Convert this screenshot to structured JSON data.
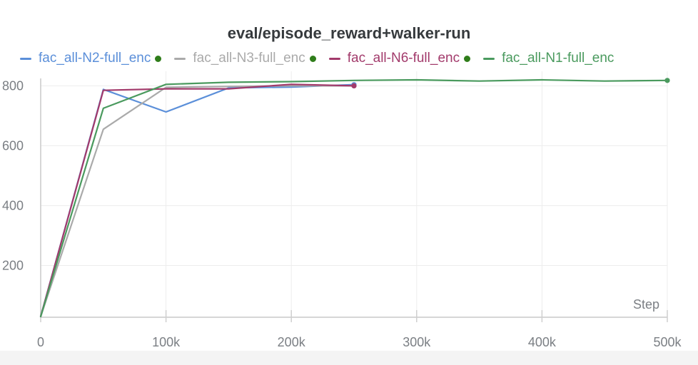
{
  "chart_data": {
    "type": "line",
    "title": "eval/episode_reward+walker-run",
    "xlabel": "Step",
    "ylabel": "",
    "xlim": [
      0,
      500000
    ],
    "ylim": [
      30,
      820
    ],
    "xticks": [
      0,
      100000,
      200000,
      300000,
      400000,
      500000
    ],
    "xtick_labels": [
      "0",
      "100k",
      "200k",
      "300k",
      "400k",
      "500k"
    ],
    "yticks": [
      200,
      400,
      600,
      800
    ],
    "ytick_labels": [
      "200",
      "400",
      "600",
      "800"
    ],
    "grid": true,
    "legend_position": "top",
    "series": [
      {
        "name": "fac_all-N2-full_enc",
        "color": "#5b8fd9",
        "marker_dot": true,
        "x": [
          0,
          50000,
          100000,
          150000,
          200000,
          250000
        ],
        "y": [
          30,
          788,
          713,
          793,
          796,
          804
        ]
      },
      {
        "name": "fac_all-N3-full_enc",
        "color": "#aaaaaa",
        "marker_dot": true,
        "x": [
          0,
          50000,
          100000,
          150000,
          200000,
          250000
        ],
        "y": [
          30,
          655,
          795,
          798,
          800,
          800
        ]
      },
      {
        "name": "fac_all-N6-full_enc",
        "color": "#a23a6b",
        "marker_dot": true,
        "x": [
          0,
          50000,
          100000,
          150000,
          200000,
          250000
        ],
        "y": [
          30,
          785,
          790,
          790,
          805,
          800
        ]
      },
      {
        "name": "fac_all-N1-full_enc",
        "color": "#4a9a5e",
        "marker_dot": false,
        "x": [
          0,
          50000,
          100000,
          150000,
          200000,
          250000,
          300000,
          350000,
          400000,
          450000,
          500000
        ],
        "y": [
          30,
          725,
          805,
          812,
          814,
          818,
          820,
          816,
          820,
          816,
          818
        ]
      }
    ],
    "legend_dot_color": "#2f7d1a"
  }
}
